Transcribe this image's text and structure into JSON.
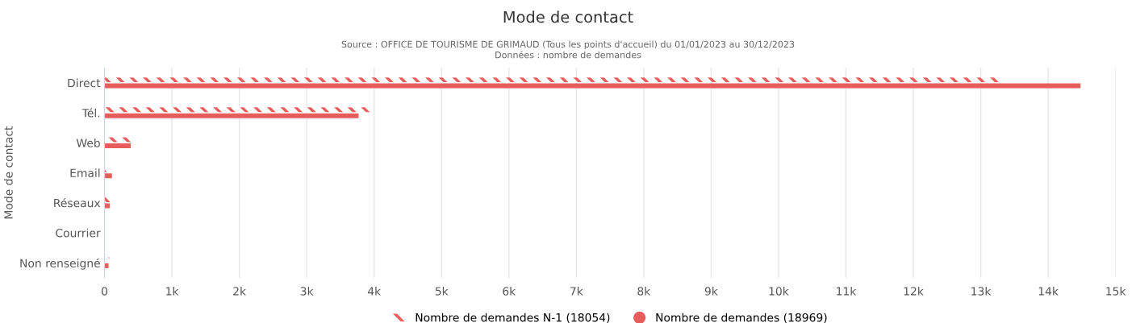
{
  "chart_data": {
    "type": "bar",
    "orientation": "horizontal",
    "title": "Mode de contact",
    "subtitle": "Source : OFFICE DE TOURISME DE GRIMAUD (Tous les points d'accueil) du 01/01/2023 au 30/12/2023\nDonnées : nombre de demandes",
    "ylabel": "Mode de contact",
    "categories": [
      "Direct",
      "Tél.",
      "Web",
      "Email",
      "Réseaux",
      "Courrier",
      "Non renseigné"
    ],
    "series": [
      {
        "name": "Nombre de demandes N-1 (18054)",
        "color": "#e85c5c",
        "values": [
          13320,
          3940,
          390,
          90,
          130,
          0,
          70
        ]
      },
      {
        "name": "Nombre de demandes (18969)",
        "color": "#e85c5c",
        "values": [
          14480,
          3770,
          390,
          110,
          80,
          0,
          60
        ]
      }
    ],
    "xlim": [
      0,
      15000
    ],
    "xticks": [
      0,
      {
        "value": 1000,
        "label": "1k"
      },
      {
        "value": 2000,
        "label": "2k"
      },
      {
        "value": 3000,
        "label": "3k"
      },
      {
        "value": 4000,
        "label": "4k"
      },
      {
        "value": 5000,
        "label": "5k"
      },
      {
        "value": 6000,
        "label": "6k"
      },
      {
        "value": 7000,
        "label": "7k"
      },
      {
        "value": 8000,
        "label": "8k"
      },
      {
        "value": 9000,
        "label": "9k"
      },
      {
        "value": 10000,
        "label": "10k"
      },
      {
        "value": 11000,
        "label": "11k"
      },
      {
        "value": 12000,
        "label": "12k"
      },
      {
        "value": 13000,
        "label": "13k"
      },
      {
        "value": 14000,
        "label": "14k"
      },
      {
        "value": 15000,
        "label": "15k"
      }
    ],
    "grid": "x",
    "legend": "bottom"
  }
}
